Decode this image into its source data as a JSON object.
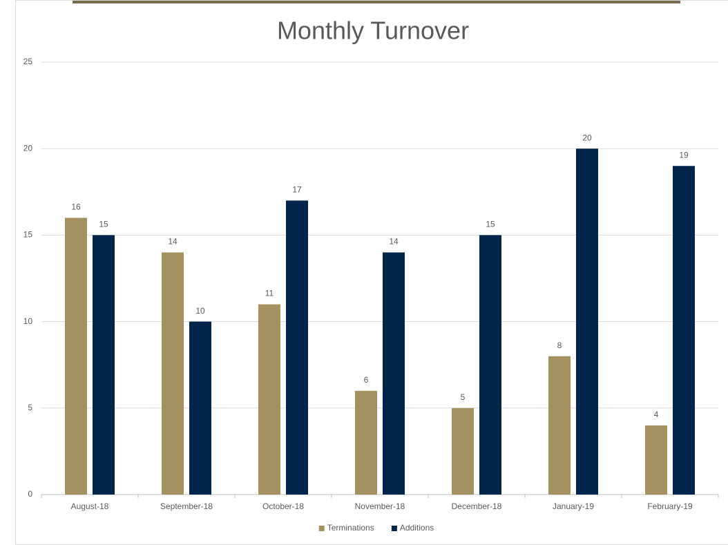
{
  "chart_data": {
    "type": "bar",
    "title": "Monthly Turnover",
    "categories": [
      "August-18",
      "September-18",
      "October-18",
      "November-18",
      "December-18",
      "January-19",
      "February-19"
    ],
    "series": [
      {
        "name": "Terminations",
        "color": "#a59160",
        "values": [
          16,
          14,
          11,
          6,
          5,
          8,
          4
        ]
      },
      {
        "name": "Additions",
        "color": "#00244a",
        "values": [
          15,
          10,
          17,
          14,
          15,
          20,
          19
        ]
      }
    ],
    "ylim": [
      0,
      25
    ],
    "yticks": [
      0,
      5,
      10,
      15,
      20,
      25
    ],
    "grid": true,
    "legend": "bottom"
  }
}
